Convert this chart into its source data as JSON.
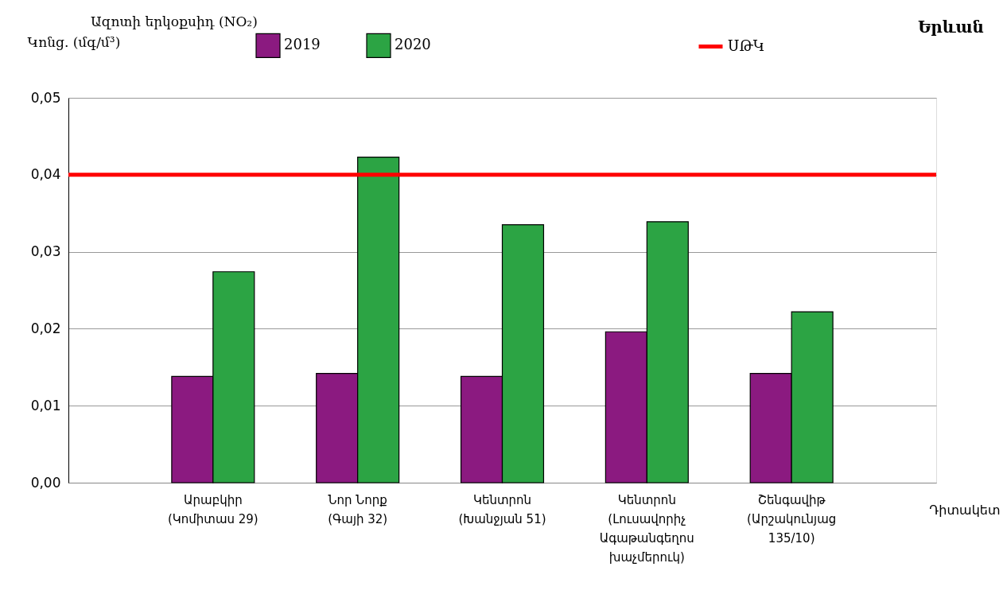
{
  "chart_data": {
    "type": "bar",
    "title": "Ազոտի երկօքսիդ  (NO₂)",
    "ylabel": "Կոնց. (մգ/մ³)",
    "xlabel": "Դիտակետ",
    "annotations": [
      "Երևան"
    ],
    "categories": [
      "Արաբկիր\n\n(Կոմիտաս 29)",
      "Նոր Նորք\n\n(Գայի 32)",
      "Կենտրոն\n\n(Խանջյան 51)",
      "Կենտրոն\n(Լուսավորիչ\nԱգաթանգեղոս\nխաչմերուկ)",
      "Շենգավիթ\n(Արշակունյաց\n135/10)"
    ],
    "series": [
      {
        "name": "2019",
        "color": "#8b1a80",
        "values": [
          0.0138,
          0.0142,
          0.0138,
          0.0196,
          0.0142
        ]
      },
      {
        "name": "2020",
        "color": "#2ca444",
        "values": [
          0.0274,
          0.0423,
          0.0335,
          0.0339,
          0.0222
        ]
      }
    ],
    "ref_lines": [
      {
        "axis": "y",
        "value": 0.04,
        "label": "ՍԹԿ",
        "color": "#ff0000"
      }
    ],
    "ylim": [
      0,
      0.05
    ],
    "yticks": [
      {
        "value": 0,
        "label": "0,00"
      },
      {
        "value": 0.01,
        "label": "0,01"
      },
      {
        "value": 0.02,
        "label": "0,02"
      },
      {
        "value": 0.03,
        "label": "0,03"
      },
      {
        "value": 0.04,
        "label": "0,04"
      },
      {
        "value": 0.05,
        "label": "0,05"
      }
    ],
    "grid": "y",
    "legend": "top"
  }
}
